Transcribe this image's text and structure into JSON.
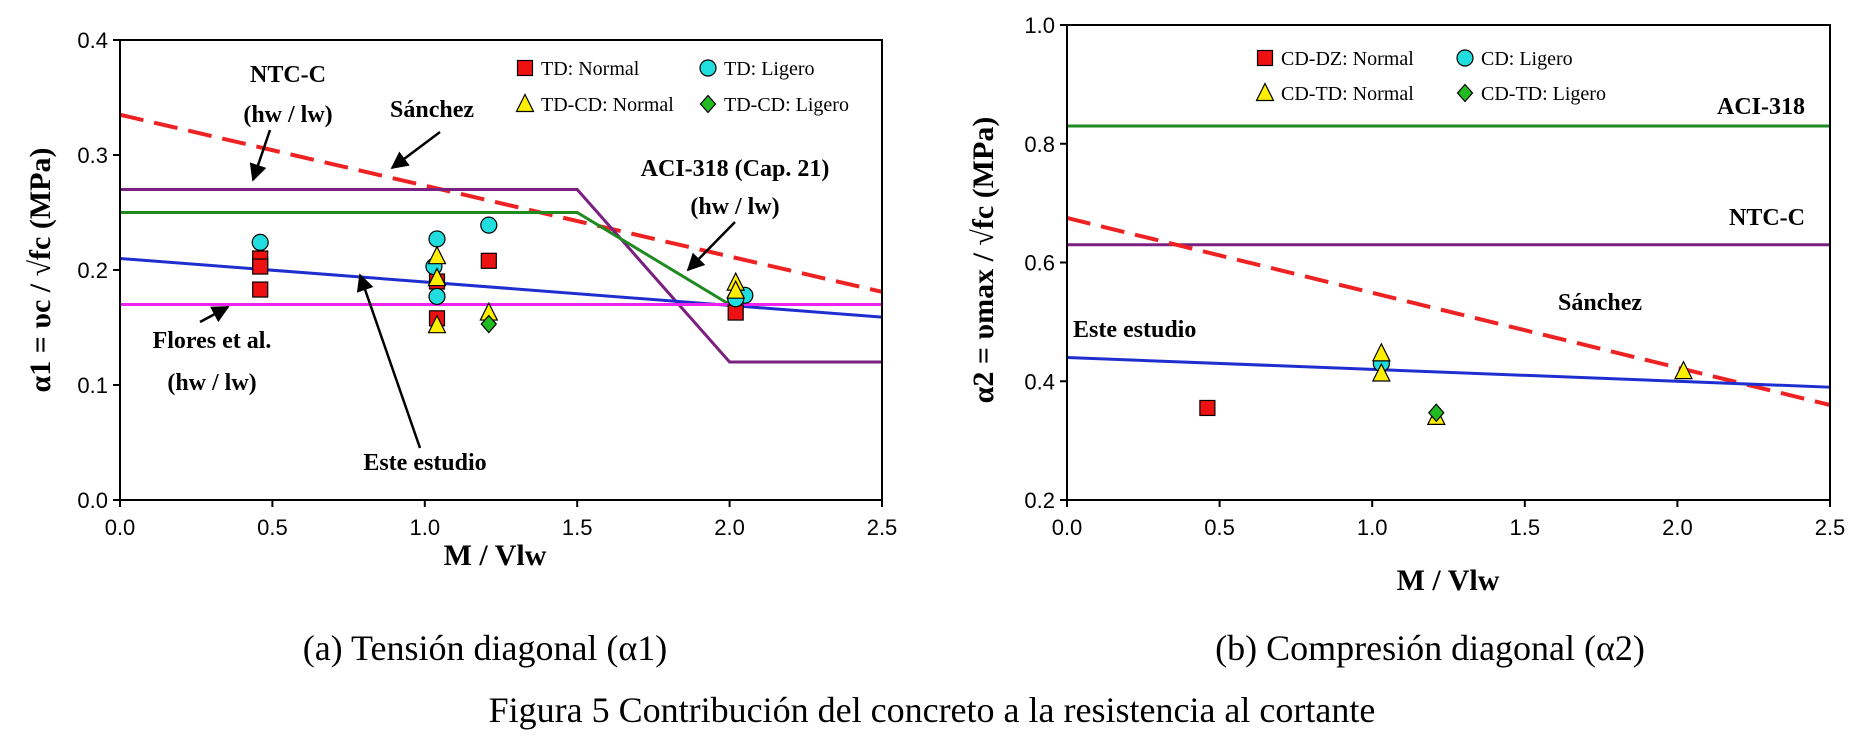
{
  "figure_title": "Figura 5 Contribución del concreto a la resistencia al cortante",
  "chart_data": [
    {
      "type": "scatter",
      "caption": "(a) Tensión diagonal (α1)",
      "xlabel": "M / Vlw",
      "ylabel": "α1 = υc / √fc (MPa)",
      "xlim": [
        0,
        2.5
      ],
      "ylim": [
        0,
        0.4
      ],
      "xticks": [
        "0.0",
        "0.5",
        "1.0",
        "1.5",
        "2.0",
        "2.5"
      ],
      "yticks": [
        "0.0",
        "0.1",
        "0.2",
        "0.3",
        "0.4"
      ],
      "legend": [
        {
          "label": "TD: Normal",
          "marker": "square",
          "color": "#ee1111"
        },
        {
          "label": "TD: Ligero",
          "marker": "circle",
          "color": "#22dddd"
        },
        {
          "label": "TD-CD: Normal",
          "marker": "triangle",
          "color": "#ffee00"
        },
        {
          "label": "TD-CD: Ligero",
          "marker": "diamond",
          "color": "#22bb22"
        }
      ],
      "lines": [
        {
          "name": "NTC-C",
          "color": "#ee2222",
          "dash": true,
          "x": [
            0,
            2.5
          ],
          "y": [
            0.335,
            0.181
          ]
        },
        {
          "name": "Sánchez",
          "color": "#7b2080",
          "dash": false,
          "x": [
            0,
            1.5,
            2.0,
            2.5
          ],
          "y": [
            0.27,
            0.27,
            0.12,
            0.12
          ]
        },
        {
          "name": "ACI-318 (Cap. 21)",
          "color": "#1f8a1f",
          "dash": false,
          "x": [
            0,
            1.5,
            2.0,
            2.5
          ],
          "y": [
            0.25,
            0.25,
            0.17,
            0.17
          ]
        },
        {
          "name": "Este estudio",
          "color": "#1f2fcf",
          "dash": false,
          "x": [
            0,
            2.5
          ],
          "y": [
            0.21,
            0.159
          ]
        },
        {
          "name": "Flores et al.",
          "color": "#ee22ee",
          "dash": false,
          "x": [
            0,
            2.5
          ],
          "y": [
            0.17,
            0.17
          ]
        }
      ],
      "points": [
        {
          "series": "TD: Normal",
          "marker": "square",
          "color": "#ee1111",
          "x": [
            0.46,
            0.46,
            0.46,
            1.04,
            1.04,
            1.21,
            2.02
          ],
          "y": [
            0.21,
            0.203,
            0.183,
            0.19,
            0.158,
            0.208,
            0.163
          ]
        },
        {
          "series": "TD: Ligero",
          "marker": "circle",
          "color": "#22dddd",
          "x": [
            0.46,
            1.03,
            1.04,
            1.21,
            1.04,
            2.05,
            2.02
          ],
          "y": [
            0.224,
            0.203,
            0.227,
            0.239,
            0.177,
            0.178,
            0.175
          ]
        },
        {
          "series": "TD-CD: Normal",
          "marker": "triangle",
          "color": "#ffee00",
          "x": [
            1.04,
            1.04,
            1.04,
            1.21,
            2.02,
            2.02
          ],
          "y": [
            0.212,
            0.193,
            0.152,
            0.163,
            0.189,
            0.182
          ]
        },
        {
          "series": "TD-CD: Ligero",
          "marker": "diamond",
          "color": "#22bb22",
          "x": [
            1.21
          ],
          "y": [
            0.153
          ]
        }
      ],
      "annotations": {
        "ntc_title": "NTC-C",
        "ntc_sub": "(hw / lw)",
        "sanchez": "Sánchez",
        "aci_title": "ACI-318 (Cap. 21)",
        "aci_sub": "(hw / lw)",
        "flores_title": "Flores et al.",
        "flores_sub": "(hw / lw)",
        "este": "Este estudio"
      }
    },
    {
      "type": "scatter",
      "caption": "(b) Compresión diagonal (α2)",
      "xlabel": "M / Vlw",
      "ylabel": "α2 = υmax / √fc (MPa)",
      "xlim": [
        0,
        2.5
      ],
      "ylim": [
        0.2,
        1.0
      ],
      "xticks": [
        "0.0",
        "0.5",
        "1.0",
        "1.5",
        "2.0",
        "2.5"
      ],
      "yticks": [
        "0.2",
        "0.4",
        "0.6",
        "0.8",
        "1.0"
      ],
      "legend": [
        {
          "label": "CD-DZ: Normal",
          "marker": "square",
          "color": "#ee1111"
        },
        {
          "label": "CD: Ligero",
          "marker": "circle",
          "color": "#22dddd"
        },
        {
          "label": "CD-TD: Normal",
          "marker": "triangle",
          "color": "#ffee00"
        },
        {
          "label": "CD-TD: Ligero",
          "marker": "diamond",
          "color": "#22bb22"
        }
      ],
      "lines": [
        {
          "name": "ACI-318",
          "color": "#1f8a1f",
          "dash": false,
          "x": [
            0,
            2.5
          ],
          "y": [
            0.83,
            0.83
          ]
        },
        {
          "name": "NTC-C",
          "color": "#7b2080",
          "dash": false,
          "x": [
            0,
            2.5
          ],
          "y": [
            0.63,
            0.63
          ]
        },
        {
          "name": "Sánchez",
          "color": "#ee2222",
          "dash": true,
          "x": [
            0,
            2.5
          ],
          "y": [
            0.675,
            0.36
          ]
        },
        {
          "name": "Este estudio",
          "color": "#1f2fcf",
          "dash": false,
          "x": [
            0,
            2.5
          ],
          "y": [
            0.44,
            0.39
          ]
        }
      ],
      "points": [
        {
          "series": "CD-DZ: Normal",
          "marker": "square",
          "color": "#ee1111",
          "x": [
            0.46
          ],
          "y": [
            0.355
          ]
        },
        {
          "series": "CD: Ligero",
          "marker": "circle",
          "color": "#22dddd",
          "x": [
            1.03
          ],
          "y": [
            0.43
          ]
        },
        {
          "series": "CD-TD: Normal",
          "marker": "triangle",
          "color": "#ffee00",
          "x": [
            1.03,
            1.03,
            1.21,
            2.02
          ],
          "y": [
            0.447,
            0.413,
            0.34,
            0.417
          ]
        },
        {
          "series": "CD-TD: Ligero",
          "marker": "diamond",
          "color": "#22bb22",
          "x": [
            1.21
          ],
          "y": [
            0.347
          ]
        }
      ],
      "annotations": {
        "aci": "ACI-318",
        "ntc": "NTC-C",
        "sanchez": "Sánchez",
        "este": "Este estudio"
      }
    }
  ]
}
